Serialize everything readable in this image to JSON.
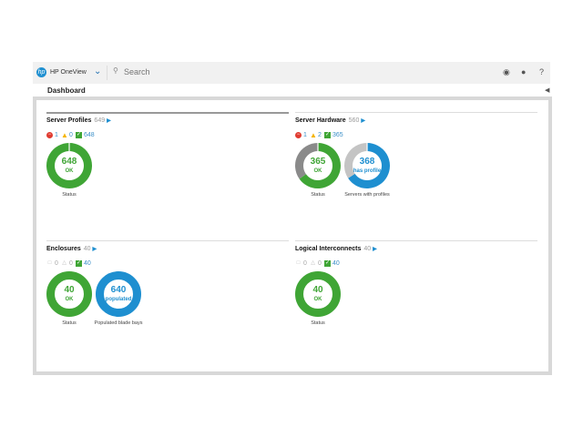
{
  "app": {
    "name": "HP OneView",
    "search_placeholder": "Search"
  },
  "page_title": "Dashboard",
  "colors": {
    "ok": "#3fa535",
    "error": "#e03c31",
    "warning": "#f5b400",
    "blue": "#1e8fd0",
    "gray": "#8a8a8a",
    "lightgray": "#c4c4c4"
  },
  "panels": [
    {
      "title": "Server Profiles",
      "count": "649",
      "status": [
        {
          "type": "error",
          "value": "1"
        },
        {
          "type": "warning",
          "value": "0"
        },
        {
          "type": "ok",
          "value": "648"
        }
      ],
      "donuts": [
        {
          "value": "648",
          "sub": "OK",
          "label": "Status",
          "segments": [
            {
              "v": 648,
              "c": "ok"
            },
            {
              "v": 1,
              "c": "white"
            }
          ]
        }
      ]
    },
    {
      "title": "Server Hardware",
      "count": "560",
      "status": [
        {
          "type": "error",
          "value": "1"
        },
        {
          "type": "warning",
          "value": "2"
        },
        {
          "type": "ok",
          "value": "365"
        }
      ],
      "donuts": [
        {
          "value": "365",
          "sub": "OK",
          "label": "Status",
          "segments": [
            {
              "v": 365,
              "c": "ok"
            },
            {
              "v": 195,
              "c": "gray"
            }
          ]
        },
        {
          "value": "368",
          "sub": "has profile",
          "label": "Servers with profiles",
          "segments": [
            {
              "v": 368,
              "c": "blue"
            },
            {
              "v": 192,
              "c": "lightgray"
            }
          ]
        }
      ]
    },
    {
      "title": "Enclosures",
      "count": "40",
      "status": [
        {
          "type": "disabled",
          "value": "0"
        },
        {
          "type": "warning-dim",
          "value": "0"
        },
        {
          "type": "ok",
          "value": "40"
        }
      ],
      "donuts": [
        {
          "value": "40",
          "sub": "OK",
          "label": "Status",
          "segments": [
            {
              "v": 40,
              "c": "ok"
            }
          ]
        },
        {
          "value": "640",
          "sub": "populated",
          "label": "Populated blade bays",
          "segments": [
            {
              "v": 640,
              "c": "blue"
            }
          ]
        }
      ]
    },
    {
      "title": "Logical Interconnects",
      "count": "40",
      "status": [
        {
          "type": "disabled",
          "value": "0"
        },
        {
          "type": "warning-dim",
          "value": "0"
        },
        {
          "type": "ok",
          "value": "40"
        }
      ],
      "donuts": [
        {
          "value": "40",
          "sub": "OK",
          "label": "Status",
          "segments": [
            {
              "v": 40,
              "c": "ok"
            }
          ]
        }
      ]
    }
  ]
}
